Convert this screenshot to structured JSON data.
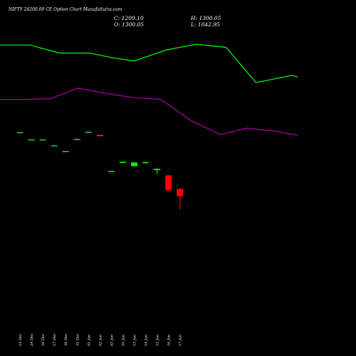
{
  "chart_data": {
    "type": "candlestick",
    "title": "NIFTY 24200.00  CE Option  Chart MunafaSutra.com",
    "ohlc_labels": {
      "close": "C: 1209.10",
      "open": "O: 1300.05",
      "high": "H: 1300.05",
      "low": "L: 1042.95"
    },
    "categories": [
      "23 Dec",
      "24 Dec",
      "26 Dec",
      "27 Dec",
      "30 Dec",
      "31 Dec",
      "01 Jan",
      "02 Jan",
      "03 Jan",
      "10 Jan",
      "13 Jan",
      "14 Jan",
      "15 Jan",
      "16 Jan",
      "17 Jan"
    ],
    "y_range": [
      -300,
      3200
    ],
    "candles": [
      {
        "open": 2010,
        "high": 2010,
        "low": 2010,
        "close": 2010,
        "color": "#2ecc40"
      },
      {
        "open": 1920,
        "high": 1920,
        "low": 1920,
        "close": 1920,
        "color": "#2ecc40"
      },
      {
        "open": 1920,
        "high": 1920,
        "low": 1920,
        "close": 1920,
        "color": "#2ecc40"
      },
      {
        "open": 1845,
        "high": 1845,
        "low": 1845,
        "close": 1845,
        "color": "#2ecc40"
      },
      {
        "open": 1775,
        "high": 1775,
        "low": 1775,
        "close": 1775,
        "color": "#2ecc40"
      },
      {
        "open": 1925,
        "high": 1925,
        "low": 1925,
        "close": 1925,
        "color": "#2ecc40"
      },
      {
        "open": 2015,
        "high": 2015,
        "low": 2015,
        "close": 2015,
        "color": "#2ecc40"
      },
      {
        "open": 1975,
        "high": 1975,
        "low": 1975,
        "close": 1960,
        "color": "#ff3030"
      },
      {
        "open": 1525,
        "high": 1525,
        "low": 1525,
        "close": 1525,
        "color": "#2ecc40"
      },
      {
        "open": 1625,
        "high": 1640,
        "low": 1620,
        "close": 1640,
        "color": "#00ff00"
      },
      {
        "open": 1585,
        "high": 1635,
        "low": 1585,
        "close": 1630,
        "color": "#00ff00"
      },
      {
        "open": 1625,
        "high": 1640,
        "low": 1620,
        "close": 1635,
        "color": "#00ff00"
      },
      {
        "open": 1535,
        "high": 1560,
        "low": 1490,
        "close": 1550,
        "color": "#00ff00"
      },
      {
        "open": 1470,
        "high": 1470,
        "low": 1270,
        "close": 1285,
        "color": "#ff0000"
      },
      {
        "open": 1300,
        "high": 1300,
        "low": 1043,
        "close": 1209,
        "color": "#ff0000"
      }
    ],
    "series": [
      {
        "color": "#00ff00",
        "x": [
          0,
          0.1,
          0.2,
          0.3,
          0.38,
          0.45,
          0.56,
          0.66,
          0.76,
          0.86,
          0.98,
          1.0
        ],
        "values": [
          3100,
          3100,
          3000,
          3000,
          2940,
          2900,
          3040,
          3110,
          3070,
          2630,
          2720,
          2700
        ]
      },
      {
        "color": "#aa00aa",
        "x": [
          0,
          0.08,
          0.17,
          0.26,
          0.35,
          0.45,
          0.54,
          0.64,
          0.74,
          0.83,
          0.93,
          1.0
        ],
        "values": [
          2420,
          2420,
          2430,
          2560,
          2500,
          2440,
          2420,
          2160,
          1980,
          2060,
          2020,
          1970
        ]
      }
    ]
  }
}
